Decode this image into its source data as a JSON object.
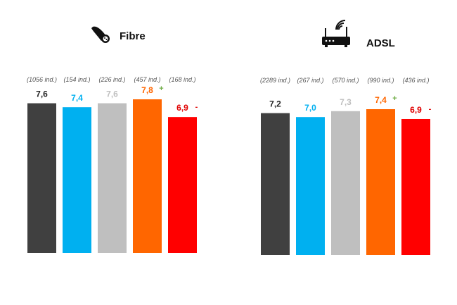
{
  "chart_data": [
    {
      "type": "bar",
      "title": "Fibre",
      "icon": "fibre-cable-icon",
      "categories": [
        "(1056 ind.)",
        "(154 ind.)",
        "(226 ind.)",
        "(457 ind.)",
        "(168 ind.)"
      ],
      "values": [
        7.6,
        7.4,
        7.6,
        7.8,
        6.9
      ],
      "value_labels": [
        "7,6",
        "7,4",
        "7,6",
        "7,8",
        "6,9"
      ],
      "markers": [
        "",
        "",
        "",
        "+",
        "-"
      ],
      "colors": [
        "#404040",
        "#00b0f0",
        "#bfbfbf",
        "#ff6600",
        "#ff0000"
      ],
      "label_colors": [
        "#222222",
        "#00b0f0",
        "#bfbfbf",
        "#ff6600",
        "#e00000"
      ],
      "marker_colors": [
        "",
        "",
        "",
        "#70ad47",
        "#e00000"
      ],
      "xlabel": "",
      "ylabel": "",
      "ylim": [
        0,
        7.8
      ],
      "grid": false
    },
    {
      "type": "bar",
      "title": "ADSL",
      "icon": "router-icon",
      "categories": [
        "(2289 ind.)",
        "(267 ind.)",
        "(570 ind.)",
        "(990 ind.)",
        "(436 ind.)"
      ],
      "values": [
        7.2,
        7.0,
        7.3,
        7.4,
        6.9
      ],
      "value_labels": [
        "7,2",
        "7,0",
        "7,3",
        "7,4",
        "6,9"
      ],
      "markers": [
        "",
        "",
        "",
        "+",
        "-"
      ],
      "colors": [
        "#404040",
        "#00b0f0",
        "#bfbfbf",
        "#ff6600",
        "#ff0000"
      ],
      "label_colors": [
        "#222222",
        "#00b0f0",
        "#bfbfbf",
        "#ff6600",
        "#e00000"
      ],
      "marker_colors": [
        "",
        "",
        "",
        "#70ad47",
        "#e00000"
      ],
      "xlabel": "",
      "ylabel": "",
      "ylim": [
        0,
        7.4
      ],
      "grid": false
    }
  ]
}
